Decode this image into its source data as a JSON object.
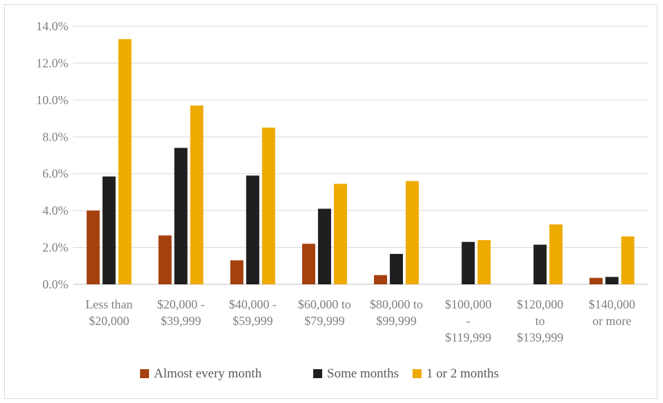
{
  "chart_data": {
    "type": "bar",
    "title": "",
    "xlabel": "",
    "ylabel": "",
    "ylim": [
      0,
      14
    ],
    "y_ticks": [
      "0.0%",
      "2.0%",
      "4.0%",
      "6.0%",
      "8.0%",
      "10.0%",
      "12.0%",
      "14.0%"
    ],
    "grid": true,
    "legend_position": "bottom",
    "categories": [
      [
        "Less than",
        "$20,000"
      ],
      [
        "$20,000 -",
        "$39,999"
      ],
      [
        "$40,000 -",
        "$59,999"
      ],
      [
        "$60,000 to",
        "$79,999"
      ],
      [
        "$80,000 to",
        "$99,999"
      ],
      [
        "$100,000",
        "-",
        "$119,999"
      ],
      [
        "$120,000",
        "to",
        "$139,999"
      ],
      [
        "$140,000",
        "or more"
      ]
    ],
    "series": [
      {
        "name": "Almost every month",
        "color": "#a5400f",
        "values": [
          4.0,
          2.65,
          1.3,
          2.2,
          0.5,
          0,
          0,
          0.35
        ]
      },
      {
        "name": "Some months",
        "color": "#1f1f1f",
        "values": [
          5.85,
          7.4,
          5.9,
          4.1,
          1.65,
          2.3,
          2.15,
          0.4
        ]
      },
      {
        "name": "1 or 2 months",
        "color": "#eeaa00",
        "values": [
          13.3,
          9.7,
          8.5,
          5.45,
          5.6,
          2.4,
          3.25,
          2.6
        ]
      }
    ]
  }
}
